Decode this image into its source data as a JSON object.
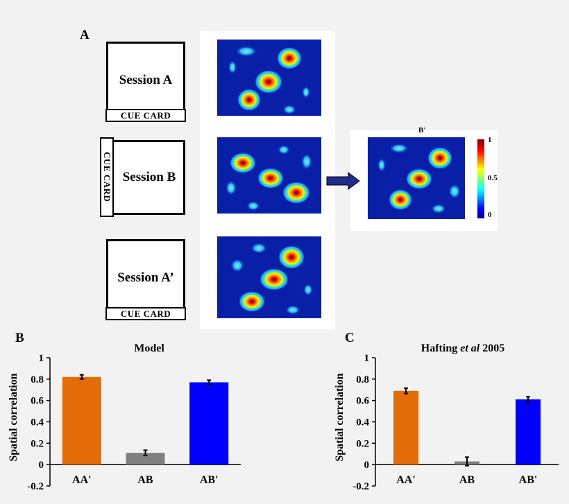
{
  "panels": {
    "a": "A",
    "b": "B",
    "c": "C"
  },
  "sessions": [
    {
      "label": "Session A",
      "cue": "CUE CARD"
    },
    {
      "label": "Session B",
      "cue": "CUE CARD"
    },
    {
      "label": "Session A’",
      "cue": "CUE CARD"
    }
  ],
  "rotated_map": {
    "title": "B'"
  },
  "colorbar": {
    "ticks": [
      "1",
      "0.5",
      "0"
    ]
  },
  "colors": {
    "aa": "#e36c09",
    "ab": "#808080",
    "abp": "#0000ff",
    "arrow": "#1f2d8f",
    "heat_bg": "#0a1fa8"
  },
  "chart_data": [
    {
      "type": "bar",
      "title": "Model",
      "categories": [
        "AA'",
        "AB",
        "AB'"
      ],
      "values": [
        0.82,
        0.11,
        0.77
      ],
      "errors": [
        0.02,
        0.025,
        0.02
      ],
      "ylabel": "Spatial correlation",
      "xlabel": "",
      "ylim": [
        -0.2,
        1
      ],
      "yticks": [
        "1",
        "0.8",
        "0.6",
        "0.4",
        "0.2",
        "0",
        "-0.2"
      ],
      "grid": false
    },
    {
      "type": "bar",
      "title_parts": [
        "Hafting ",
        "et al",
        " 2005"
      ],
      "categories": [
        "AA'",
        "AB",
        "AB'"
      ],
      "values": [
        0.69,
        0.03,
        0.61
      ],
      "errors": [
        0.025,
        0.04,
        0.025
      ],
      "ylabel": "Spatial correlation",
      "xlabel": "",
      "ylim": [
        -0.2,
        1
      ],
      "yticks": [
        "1",
        "0.8",
        "0.6",
        "0.4",
        "0.2",
        "0",
        "-0.2"
      ],
      "grid": false
    }
  ]
}
